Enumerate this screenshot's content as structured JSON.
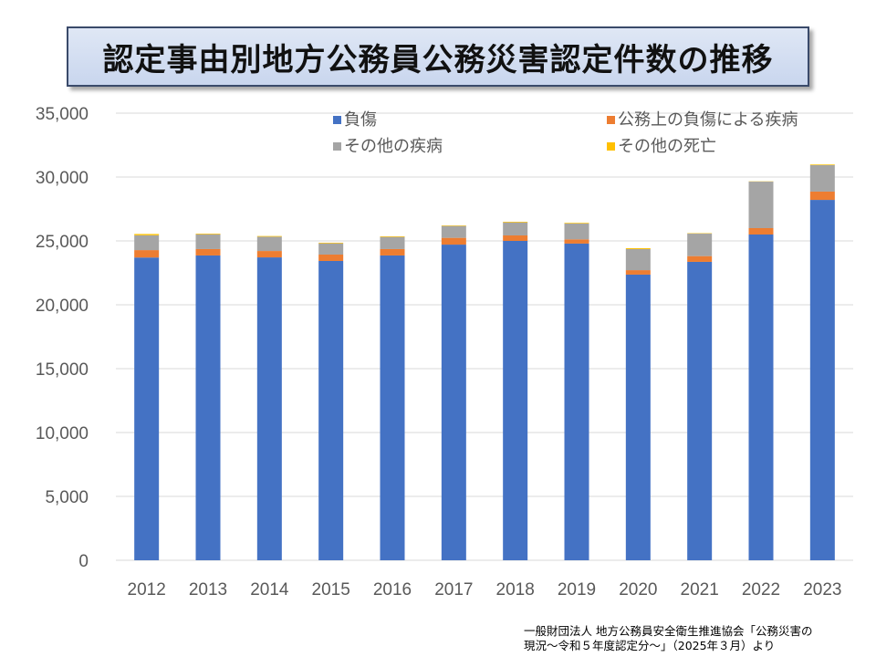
{
  "title": "認定事由別地方公務員公務災害認定件数の推移",
  "source": [
    "一般財団法人 地方公務員安全衛生推進協会「公務災害の",
    "現況～令和５年度認定分～」（2025年３月）より"
  ],
  "chart_data": {
    "type": "bar",
    "stacked": true,
    "title": "認定事由別地方公務員公務災害認定件数の推移",
    "categories": [
      "2012",
      "2013",
      "2014",
      "2015",
      "2016",
      "2017",
      "2018",
      "2019",
      "2020",
      "2021",
      "2022",
      "2023"
    ],
    "ylim": [
      0,
      35000
    ],
    "yticks": [
      0,
      5000,
      10000,
      15000,
      20000,
      25000,
      30000,
      35000
    ],
    "ytick_labels": [
      "0",
      "5,000",
      "10,000",
      "15,000",
      "20,000",
      "25,000",
      "30,000",
      "35,000"
    ],
    "grid": true,
    "legend_position": "top",
    "series": [
      {
        "name": "負傷",
        "color": "#4472c4",
        "values": [
          23700,
          23860,
          23710,
          23430,
          23860,
          24710,
          25000,
          24790,
          22360,
          23360,
          25500,
          28210
        ]
      },
      {
        "name": "公務上の負傷による疾病",
        "color": "#ed7d31",
        "values": [
          580,
          500,
          500,
          500,
          500,
          530,
          430,
          330,
          350,
          450,
          500,
          650
        ]
      },
      {
        "name": "その他の疾病",
        "color": "#a5a5a5",
        "values": [
          1160,
          1160,
          1120,
          880,
          950,
          930,
          1020,
          1240,
          1650,
          1760,
          3640,
          2070
        ]
      },
      {
        "name": "その他の死亡",
        "color": "#ffc000",
        "values": [
          100,
          50,
          50,
          50,
          50,
          40,
          50,
          50,
          70,
          30,
          20,
          50
        ]
      }
    ]
  }
}
